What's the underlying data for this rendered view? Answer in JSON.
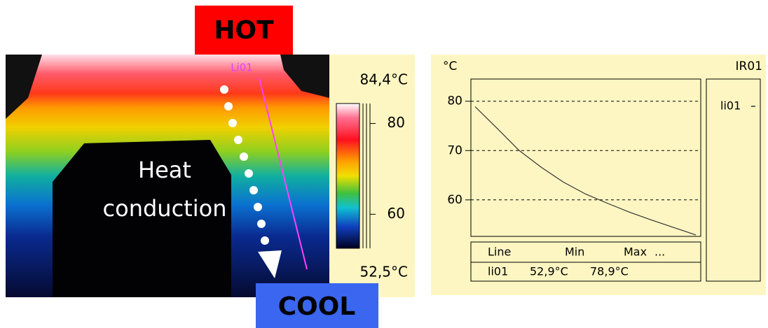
{
  "thermal": {
    "hot_label": "HOT",
    "cool_label": "COOL",
    "annotation_line1": "Heat",
    "annotation_line2": "conduction",
    "line_tag": "Li01",
    "scale": {
      "max_label": "84,4°C",
      "min_label": "52,5°C",
      "ylim": [
        52.5,
        84.4
      ],
      "yticks": [
        80,
        60
      ]
    }
  },
  "chart_data": {
    "type": "line",
    "title": "IR01",
    "y_unit": "°C",
    "series": [
      {
        "name": "li01",
        "color": "#333333",
        "values": [
          78.9,
          74.5,
          70.0,
          66.6,
          63.6,
          61.2,
          59.3,
          57.5,
          55.9,
          54.4,
          52.9
        ]
      }
    ],
    "ylim": [
      52.6,
      84.5
    ],
    "yticks": [
      60,
      70,
      80
    ],
    "grid": true,
    "table": {
      "header": [
        "Line",
        "Min",
        "Max",
        "..."
      ],
      "rows": [
        [
          "li01",
          "52,9°C",
          "78,9°C"
        ]
      ]
    }
  }
}
